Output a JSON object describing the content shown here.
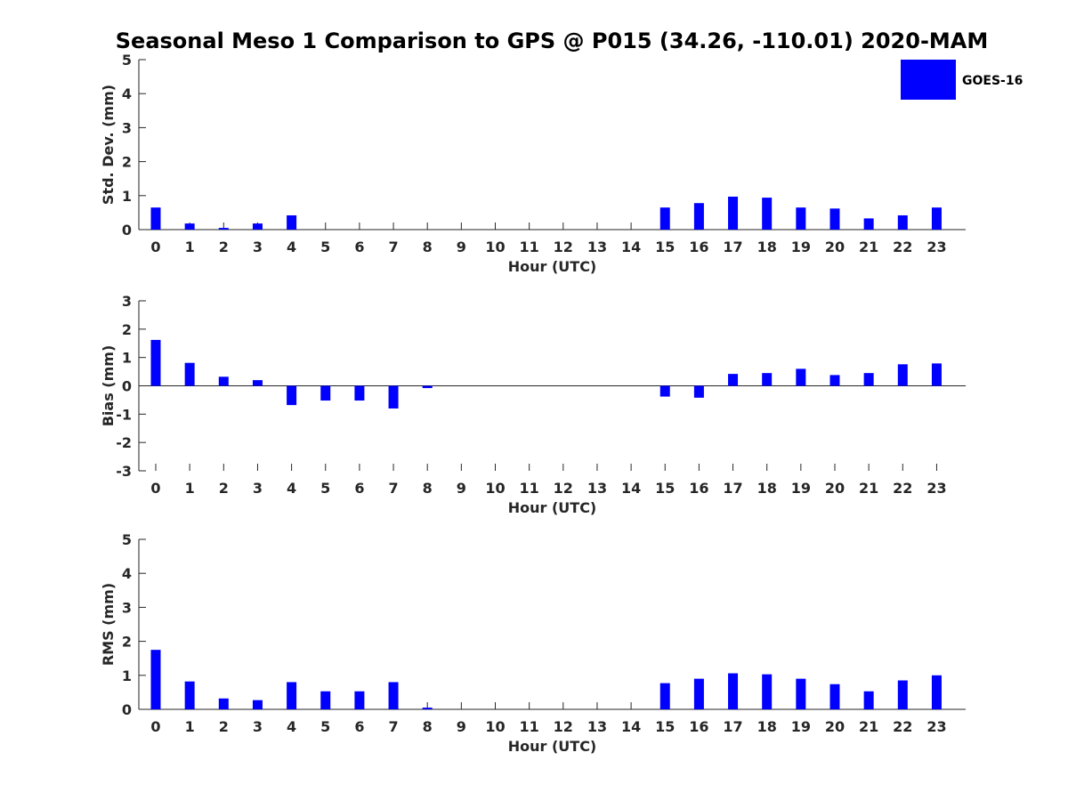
{
  "title": "Seasonal Meso 1 Comparison to GPS @ P015 (34.26, -110.01) 2020-MAM",
  "bar_color": "#0000ff",
  "chart_data": [
    {
      "type": "bar",
      "ylabel": "Std. Dev. (mm)",
      "xlabel": "Hour (UTC)",
      "ylim": [
        0,
        5
      ],
      "yticks": [
        0,
        1,
        2,
        3,
        4,
        5
      ],
      "categories": [
        "0",
        "1",
        "2",
        "3",
        "4",
        "5",
        "6",
        "7",
        "8",
        "9",
        "10",
        "11",
        "12",
        "13",
        "14",
        "15",
        "16",
        "17",
        "18",
        "19",
        "20",
        "21",
        "22",
        "23"
      ],
      "series": [
        {
          "name": "GOES-16",
          "values": [
            0.65,
            0.18,
            0.05,
            0.18,
            0.42,
            0,
            0,
            0,
            0,
            0,
            0,
            0,
            0,
            0,
            0,
            0.65,
            0.78,
            0.97,
            0.94,
            0.65,
            0.62,
            0.33,
            0.42,
            0.65
          ]
        }
      ],
      "legend": {
        "entries": [
          "GOES-16"
        ],
        "position": "top-right"
      }
    },
    {
      "type": "bar",
      "ylabel": "Bias (mm)",
      "xlabel": "Hour (UTC)",
      "ylim": [
        -3,
        3
      ],
      "yticks": [
        -3,
        -2,
        -1,
        0,
        1,
        2,
        3
      ],
      "categories": [
        "0",
        "1",
        "2",
        "3",
        "4",
        "5",
        "6",
        "7",
        "8",
        "9",
        "10",
        "11",
        "12",
        "13",
        "14",
        "15",
        "16",
        "17",
        "18",
        "19",
        "20",
        "21",
        "22",
        "23"
      ],
      "series": [
        {
          "name": "GOES-16",
          "values": [
            1.62,
            0.81,
            0.32,
            0.2,
            -0.68,
            -0.52,
            -0.52,
            -0.8,
            -0.08,
            0,
            0,
            0,
            0,
            0,
            0,
            -0.38,
            -0.42,
            0.42,
            0.45,
            0.6,
            0.38,
            0.45,
            0.76,
            0.79
          ]
        }
      ]
    },
    {
      "type": "bar",
      "ylabel": "RMS (mm)",
      "xlabel": "Hour (UTC)",
      "ylim": [
        0,
        5
      ],
      "yticks": [
        0,
        1,
        2,
        3,
        4,
        5
      ],
      "categories": [
        "0",
        "1",
        "2",
        "3",
        "4",
        "5",
        "6",
        "7",
        "8",
        "9",
        "10",
        "11",
        "12",
        "13",
        "14",
        "15",
        "16",
        "17",
        "18",
        "19",
        "20",
        "21",
        "22",
        "23"
      ],
      "series": [
        {
          "name": "GOES-16",
          "values": [
            1.75,
            0.82,
            0.32,
            0.27,
            0.8,
            0.53,
            0.53,
            0.8,
            0.05,
            0,
            0,
            0,
            0,
            0,
            0,
            0.77,
            0.9,
            1.06,
            1.03,
            0.9,
            0.74,
            0.53,
            0.85,
            1.0
          ]
        }
      ]
    }
  ]
}
